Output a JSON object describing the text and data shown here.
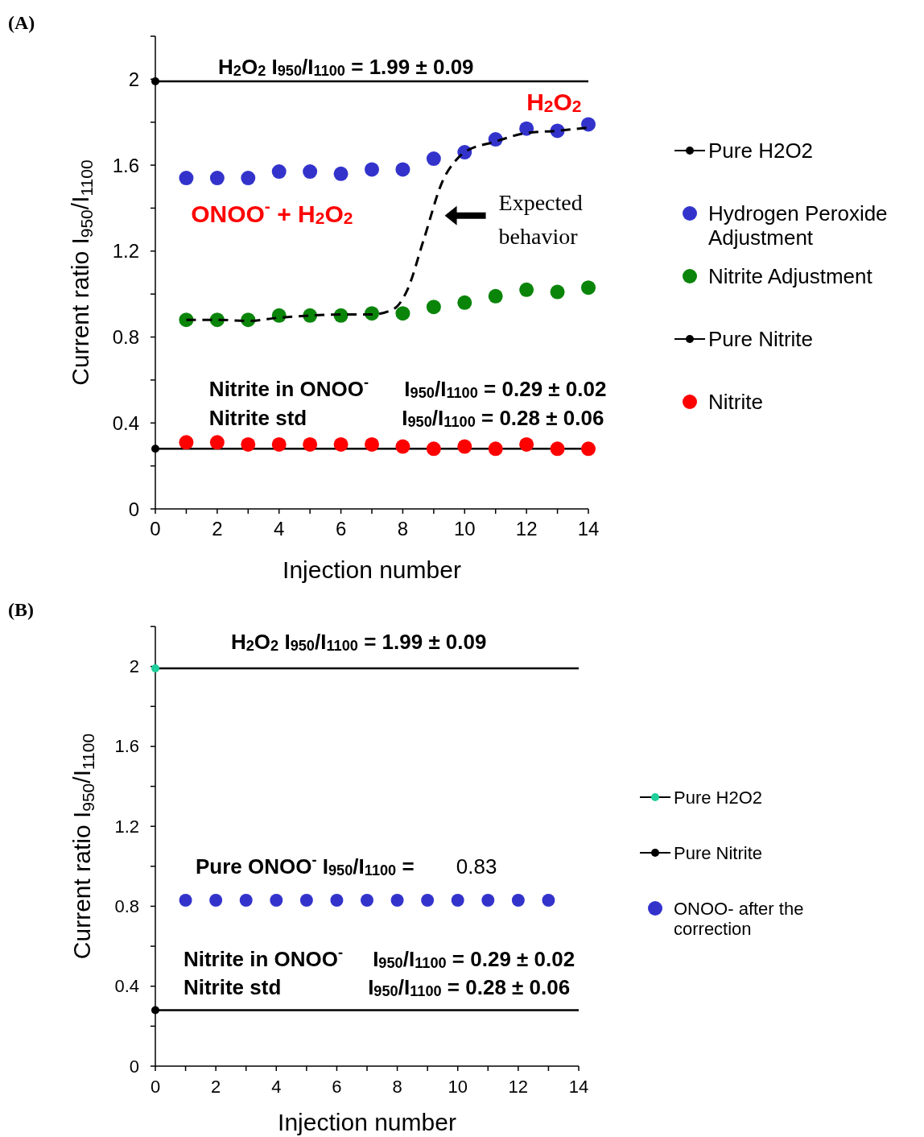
{
  "chart_data": [
    {
      "type": "scatter",
      "title": "(A)",
      "xlabel": "Injection number",
      "ylabel": "Current ratio I$_{950}$/I$_{1100}$",
      "xlim": [
        0,
        14
      ],
      "ylim": [
        0,
        2.2
      ],
      "xticks": [
        0,
        {
          "value": 1,
          "label": null
        },
        2,
        {
          "value": 3,
          "label": null
        },
        4,
        {
          "value": 5,
          "label": null
        },
        6,
        {
          "value": 7,
          "label": null
        },
        8,
        {
          "value": 9,
          "label": null
        },
        10,
        {
          "value": 11,
          "label": null
        },
        12,
        {
          "value": 13,
          "label": null
        },
        14
      ],
      "yticks": [
        0,
        {
          "value": 0.2,
          "label": null
        },
        0.4,
        {
          "value": 0.6,
          "label": null
        },
        0.8,
        {
          "value": 1,
          "label": null
        },
        1.2,
        {
          "value": 1.4,
          "label": null
        },
        1.6,
        {
          "value": 1.8,
          "label": null
        },
        2,
        {
          "value": 2.2,
          "label": null
        }
      ],
      "legend": "right",
      "series": [
        {
          "name": "Pure H2O2",
          "type": "line",
          "marker": "circle",
          "color": "#000000",
          "x": [
            0
          ],
          "values": [
            1.99
          ]
        },
        {
          "name": "Hydrogen Peroxide Adjustment",
          "marker": "circle",
          "color": "#3333cc",
          "x": [
            1,
            2,
            3,
            4,
            5,
            6,
            7,
            8,
            9,
            10,
            11,
            12,
            13,
            14
          ],
          "values": [
            1.54,
            1.54,
            1.54,
            1.57,
            1.57,
            1.56,
            1.58,
            1.58,
            1.63,
            1.66,
            1.72,
            1.77,
            1.76,
            1.79
          ]
        },
        {
          "name": "Nitrite Adjustment",
          "marker": "circle",
          "color": "#0a850a",
          "x": [
            1,
            2,
            3,
            4,
            5,
            6,
            7,
            8,
            9,
            10,
            11,
            12,
            13,
            14
          ],
          "values": [
            0.88,
            0.88,
            0.88,
            0.9,
            0.9,
            0.9,
            0.91,
            0.91,
            0.94,
            0.96,
            0.99,
            1.02,
            1.01,
            1.03
          ]
        },
        {
          "name": "Pure Nitrite",
          "type": "line",
          "marker": "circle",
          "color": "#000000",
          "x": [
            0
          ],
          "values": [
            0.28
          ]
        },
        {
          "name": "Nitrite",
          "marker": "circle",
          "color": "#ff0000",
          "x": [
            1,
            2,
            3,
            4,
            5,
            6,
            7,
            8,
            9,
            10,
            11,
            12,
            13,
            14
          ],
          "values": [
            0.31,
            0.31,
            0.3,
            0.3,
            0.3,
            0.3,
            0.3,
            0.29,
            0.28,
            0.29,
            0.28,
            0.3,
            0.28,
            0.28
          ]
        },
        {
          "type": "line",
          "marker": "none",
          "line_style": "dashed",
          "color": "#000000",
          "x": [
            1,
            2,
            3,
            4,
            5,
            6,
            7,
            7.7,
            8.15,
            8.67,
            9.3,
            9.7,
            10,
            11,
            12,
            13,
            14
          ],
          "values": [
            0.88,
            0.88,
            0.875,
            0.89,
            0.9,
            0.905,
            0.905,
            0.93,
            1.02,
            1.25,
            1.53,
            1.62,
            1.66,
            1.71,
            1.75,
            1.76,
            1.775
          ]
        }
      ],
      "ref_lines": [
        {
          "axis": "y",
          "value": 1.99,
          "color": "#000000"
        },
        {
          "axis": "y",
          "value": 0.28,
          "color": "#000000"
        }
      ],
      "annotations": [
        "H$_{2}$O$_{2}$ I$_{950}$/I$_{1100}$ = 1.99 ± 0.09",
        "H$_{2}$O$_{2}$",
        "ONOO$^{-}$ + H$_{2}$O$_{2}$",
        "Expected\nbehavior",
        "Nitrite in ONOO$^{-}$",
        "I$_{950}$/I$_{1100}$ = 0.29 ± 0.02",
        "Nitrite std",
        "I$_{950}$/I$_{1100}$ = 0.28 ± 0.06"
      ]
    },
    {
      "type": "scatter",
      "title": "(B)",
      "xlabel": "Injection number",
      "ylabel": "Current ratio I$_{950}$/I$_{1100}$",
      "xlim": [
        0,
        14
      ],
      "ylim": [
        0,
        2.2
      ],
      "xticks": [
        0,
        {
          "value": 1,
          "label": null
        },
        2,
        {
          "value": 3,
          "label": null
        },
        4,
        {
          "value": 5,
          "label": null
        },
        6,
        {
          "value": 7,
          "label": null
        },
        8,
        {
          "value": 9,
          "label": null
        },
        10,
        {
          "value": 11,
          "label": null
        },
        12,
        {
          "value": 13,
          "label": null
        },
        14
      ],
      "yticks": [
        0,
        {
          "value": 0.2,
          "label": null
        },
        0.4,
        {
          "value": 0.6,
          "label": null
        },
        0.8,
        {
          "value": 1,
          "label": null
        },
        1.2,
        {
          "value": 1.4,
          "label": null
        },
        1.6,
        {
          "value": 1.8,
          "label": null
        },
        2,
        {
          "value": 2.2,
          "label": null
        }
      ],
      "legend": "right",
      "series": [
        {
          "name": "Pure H2O2",
          "type": "line",
          "marker": "circle",
          "color": "#1fcf9c",
          "x": [
            0
          ],
          "values": [
            1.99
          ]
        },
        {
          "name": "Pure Nitrite",
          "type": "line",
          "marker": "circle",
          "color": "#000000",
          "x": [
            0
          ],
          "values": [
            0.28
          ]
        },
        {
          "name": "ONOO- after the correction",
          "marker": "circle",
          "color": "#3333cc",
          "x": [
            1,
            2,
            3,
            4,
            5,
            6,
            7,
            8,
            9,
            10,
            11,
            12,
            13
          ],
          "values": [
            0.83,
            0.83,
            0.83,
            0.83,
            0.83,
            0.83,
            0.83,
            0.83,
            0.83,
            0.83,
            0.83,
            0.83,
            0.83
          ]
        }
      ],
      "ref_lines": [
        {
          "axis": "y",
          "value": 1.99,
          "color": "#000000"
        },
        {
          "axis": "y",
          "value": 0.28,
          "color": "#000000"
        }
      ],
      "annotations": [
        "H$_{2}$O$_{2}$ I$_{950}$/I$_{1100}$ = 1.99 ± 0.09",
        "Pure ONOO$^{-}$ I$_{950}$/I$_{1100}$ =",
        "0.83",
        "Nitrite in ONOO$^{-}$",
        "I$_{950}$/I$_{1100}$ = 0.29 ± 0.02",
        "Nitrite std",
        "I$_{950}$/I$_{1100}$ = 0.28 ± 0.06"
      ]
    }
  ]
}
